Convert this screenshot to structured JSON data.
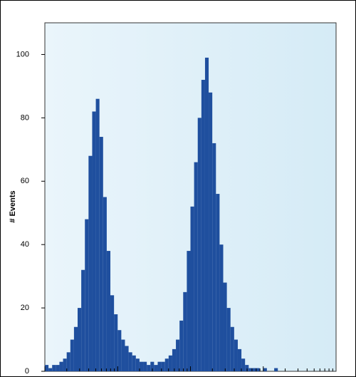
{
  "chart_data": {
    "type": "histogram",
    "y_label": "# Events",
    "bins": [
      1,
      1.122,
      1.259,
      1.413,
      1.585,
      1.778,
      1.995,
      2.239,
      2.512,
      2.818,
      3.162,
      3.548,
      3.981,
      4.467,
      5.012,
      5.623,
      6.31,
      7.079,
      7.943,
      8.913,
      10,
      11.22,
      12.59,
      14.13,
      15.85,
      17.78,
      19.95,
      22.39,
      25.12,
      28.18,
      31.62,
      35.48,
      39.81,
      44.67,
      50.12,
      56.23,
      63.1,
      70.79,
      79.43,
      89.13,
      100,
      112.2,
      125.9,
      141.3,
      158.5,
      177.8,
      199.5,
      223.9,
      251.2,
      281.8,
      316.2,
      354.8,
      398.1,
      446.7,
      501.2,
      562.3,
      631,
      707.9,
      794.3,
      891.3,
      1000,
      1122,
      1259,
      1413,
      1585,
      1778,
      1995,
      2239,
      2512,
      2818,
      3162,
      3548,
      3981,
      4467,
      5012,
      5623,
      6310,
      7079,
      7943,
      8913,
      10000
    ],
    "values": [
      2,
      1,
      2,
      2,
      3,
      4,
      6,
      10,
      14,
      20,
      32,
      48,
      68,
      82,
      86,
      74,
      55,
      38,
      24,
      18,
      13,
      10,
      8,
      6,
      5,
      4,
      3,
      3,
      2,
      3,
      2,
      3,
      3,
      4,
      5,
      7,
      10,
      16,
      25,
      38,
      52,
      66,
      80,
      92,
      99,
      88,
      72,
      56,
      40,
      28,
      20,
      14,
      10,
      7,
      4,
      2,
      1,
      1,
      1,
      0,
      1,
      0,
      0,
      1,
      0,
      0,
      0,
      0,
      0,
      0,
      0,
      0,
      0,
      0,
      0,
      0,
      0,
      0,
      0,
      0
    ],
    "color": "#1f4f9e",
    "xlim": [
      1,
      10000
    ],
    "xscale": "log",
    "ylim": [
      0,
      110
    ],
    "yticks": [
      0,
      20,
      40,
      60,
      80,
      100
    ]
  }
}
